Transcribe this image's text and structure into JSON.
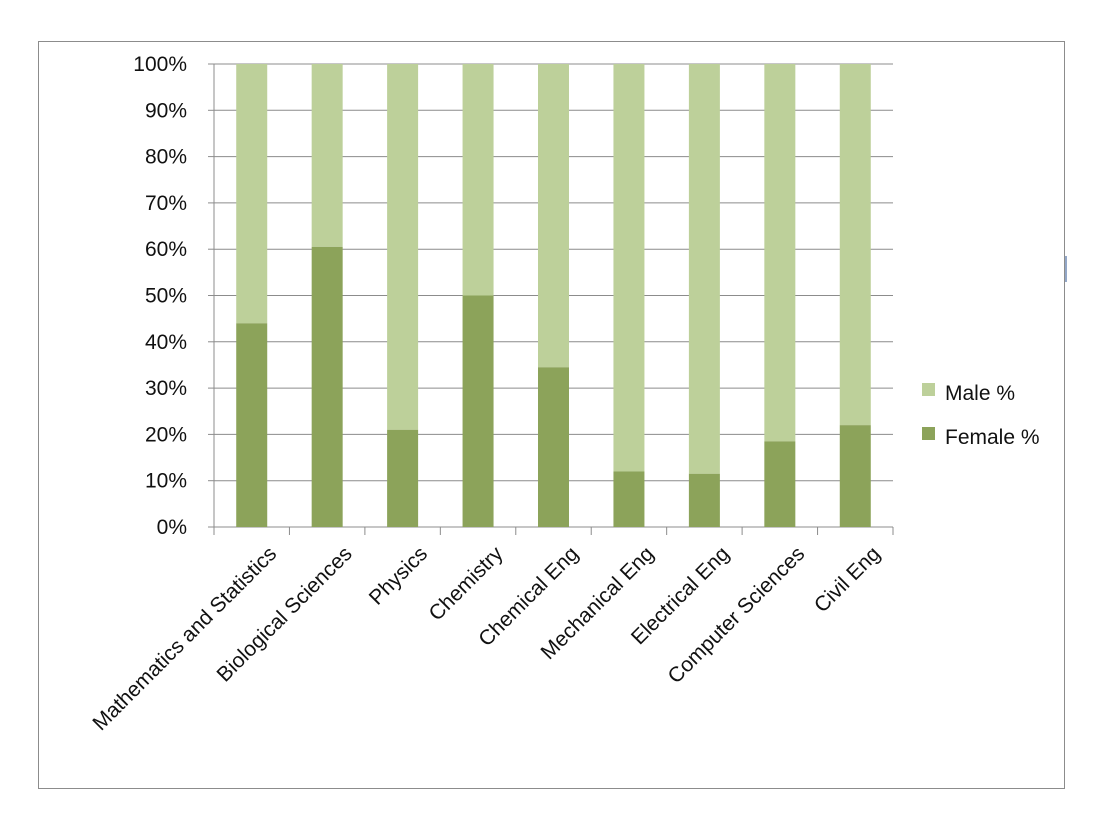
{
  "chart_data": {
    "type": "bar",
    "stacked": true,
    "percent_stacked": true,
    "categories": [
      "Mathematics and Statistics",
      "Biological Sciences",
      "Physics",
      "Chemistry",
      "Chemical Eng",
      "Mechanical Eng",
      "Electrical Eng",
      "Computer Sciences",
      "Civil Eng"
    ],
    "series": [
      {
        "name": "Female %",
        "color": "#8ca35a",
        "values": [
          44,
          60.5,
          21,
          50,
          34.5,
          12,
          11.5,
          18.5,
          22
        ]
      },
      {
        "name": "Male %",
        "color": "#bdd09a",
        "values": [
          56,
          39.5,
          79,
          50,
          65.5,
          88,
          88.5,
          81.5,
          78
        ]
      }
    ],
    "ylim": [
      0,
      100
    ],
    "yticks": [
      "0%",
      "10%",
      "20%",
      "30%",
      "40%",
      "50%",
      "60%",
      "70%",
      "80%",
      "90%",
      "100%"
    ],
    "grid": true,
    "legend": {
      "position": "right",
      "entries": [
        "Male %",
        "Female %"
      ]
    }
  }
}
